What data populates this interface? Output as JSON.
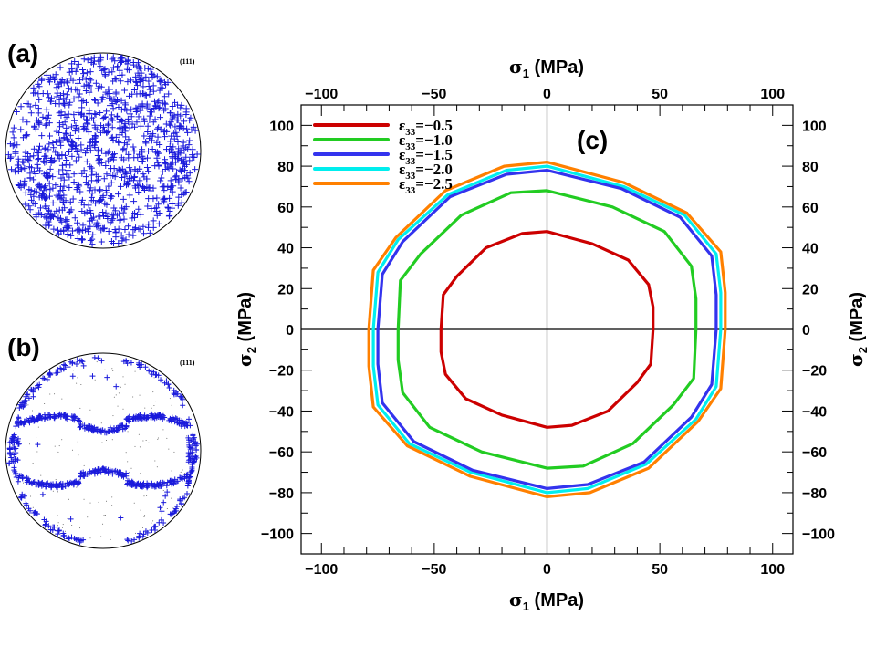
{
  "panels": {
    "a": {
      "label": "(a)",
      "pole": "(111)"
    },
    "b": {
      "label": "(b)",
      "pole": "(111)"
    },
    "c": {
      "label": "(c)"
    }
  },
  "pole_color": "#1a1adb",
  "chart_data": {
    "type": "line",
    "xlabel_top": "σ1 (MPa)",
    "xlabel_bottom": "σ1 (MPa)",
    "ylabel_left": "σ2 (MPa)",
    "ylabel_right": "σ2 (MPa)",
    "xlim": [
      -109,
      109
    ],
    "ylim": [
      -110,
      110
    ],
    "xticks": [
      -100,
      -50,
      0,
      50,
      100
    ],
    "yticks": [
      -100,
      -80,
      -60,
      -40,
      -20,
      0,
      20,
      40,
      60,
      80,
      100
    ],
    "grid": false,
    "zero_lines": true,
    "legend_position": "top-left",
    "series": [
      {
        "name": "ε33=−0.5",
        "color": "#cc0000",
        "x": [
          0,
          20,
          36,
          45,
          47,
          47,
          46,
          40,
          27,
          11,
          0,
          -20,
          -36,
          -45,
          -47,
          -47,
          -46,
          -40,
          -27,
          -11,
          0
        ],
        "y": [
          48,
          42,
          34,
          22,
          11,
          0,
          -17,
          -26,
          -40,
          -47,
          -48,
          -42,
          -34,
          -22,
          -11,
          0,
          17,
          26,
          40,
          47,
          48
        ]
      },
      {
        "name": "ε33=−1.0",
        "color": "#22cc22",
        "x": [
          0,
          29,
          52,
          64,
          66,
          66,
          65,
          56,
          38,
          16,
          0,
          -29,
          -52,
          -64,
          -66,
          -66,
          -65,
          -56,
          -38,
          -16,
          0
        ],
        "y": [
          68,
          60,
          48,
          31,
          15,
          0,
          -24,
          -37,
          -56,
          -67,
          -68,
          -60,
          -48,
          -31,
          -15,
          0,
          24,
          37,
          56,
          67,
          68
        ]
      },
      {
        "name": "ε33=−1.5",
        "color": "#3333ee",
        "x": [
          0,
          33,
          59,
          73,
          75,
          75,
          73,
          64,
          43,
          18,
          0,
          -33,
          -59,
          -73,
          -75,
          -75,
          -73,
          -64,
          -43,
          -18,
          0
        ],
        "y": [
          78,
          69,
          55,
          36,
          17,
          0,
          -27,
          -43,
          -65,
          -76,
          -78,
          -69,
          -55,
          -36,
          -17,
          0,
          27,
          43,
          65,
          76,
          78
        ]
      },
      {
        "name": "ε33=−2.0",
        "color": "#00eeee",
        "x": [
          0,
          34,
          61,
          75,
          77,
          77,
          75,
          66,
          44,
          18,
          0,
          -34,
          -61,
          -75,
          -77,
          -77,
          -75,
          -66,
          -44,
          -18,
          0
        ],
        "y": [
          80,
          70,
          56,
          37,
          18,
          0,
          -28,
          -44,
          -66,
          -78,
          -80,
          -70,
          -56,
          -37,
          -18,
          0,
          28,
          44,
          66,
          78,
          80
        ]
      },
      {
        "name": "ε33=−2.5",
        "color": "#ff8000",
        "x": [
          0,
          34,
          62,
          77,
          79,
          79,
          77,
          67,
          45,
          19,
          0,
          -34,
          -62,
          -77,
          -79,
          -79,
          -77,
          -67,
          -45,
          -19,
          0
        ],
        "y": [
          82,
          72,
          57,
          38,
          18,
          0,
          -29,
          -45,
          -68,
          -80,
          -82,
          -72,
          -57,
          -38,
          -18,
          0,
          29,
          45,
          68,
          80,
          82
        ]
      }
    ]
  }
}
